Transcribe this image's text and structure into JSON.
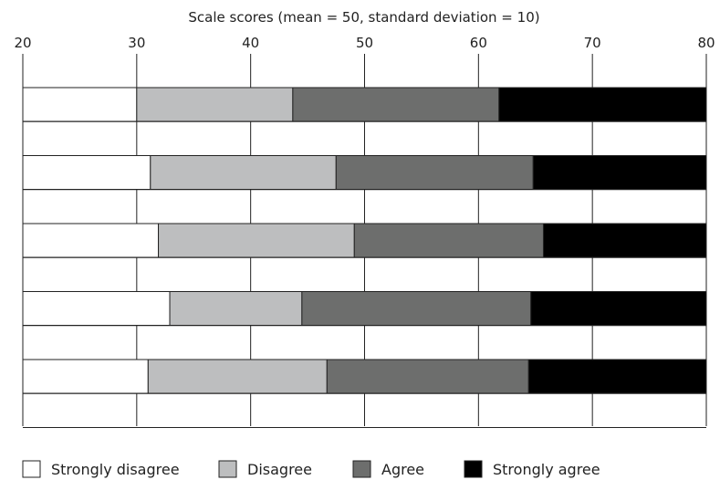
{
  "chart_data": {
    "type": "bar",
    "orientation": "horizontal",
    "stacked": true,
    "title": "",
    "xlabel": "Scale scores (mean = 50, standard deviation = 10)",
    "ylabel": "",
    "xlim": [
      20,
      80
    ],
    "xticks": [
      20,
      30,
      40,
      50,
      60,
      70,
      80
    ],
    "x_axis_position": "top",
    "grid": true,
    "legend_position": "bottom",
    "bars": [
      {
        "bounds": [
          20,
          30.0,
          43.7,
          61.8,
          80
        ]
      },
      {
        "bounds": [
          20,
          31.2,
          47.5,
          64.8,
          80
        ]
      },
      {
        "bounds": [
          20,
          31.9,
          49.1,
          65.7,
          80
        ]
      },
      {
        "bounds": [
          20,
          32.9,
          44.5,
          64.6,
          80
        ]
      },
      {
        "bounds": [
          20,
          31.0,
          46.7,
          64.4,
          80
        ]
      }
    ],
    "series": [
      {
        "name": "Strongly disagree",
        "color": "#ffffff"
      },
      {
        "name": "Disagree",
        "color": "#bdbebf"
      },
      {
        "name": "Agree",
        "color": "#6d6e6d"
      },
      {
        "name": "Strongly agree",
        "color": "#000000"
      }
    ]
  }
}
